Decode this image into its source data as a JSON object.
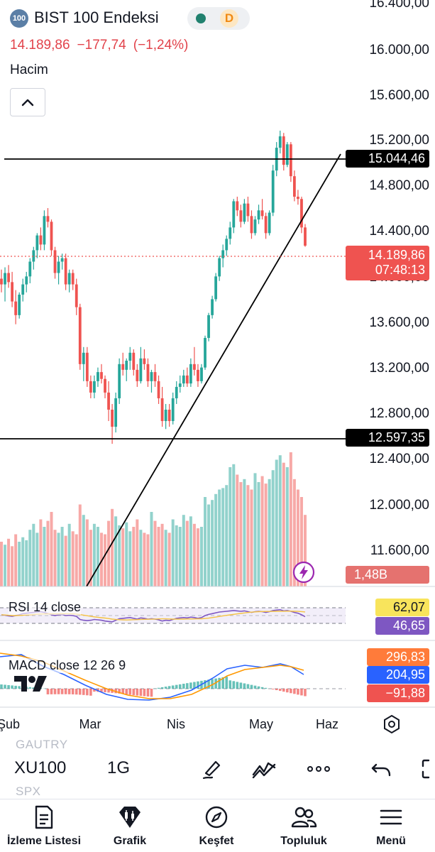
{
  "header": {
    "logo_text": "100",
    "symbol_name": "BIST 100 Endeksi",
    "delay_badge": "D",
    "last_price": "14.189,86",
    "change": "−177,74",
    "change_pct": "(−1,24%)",
    "volume_label": "Hacim"
  },
  "colors": {
    "up": "#26a69a",
    "down": "#ef5350",
    "text_down": "#e2434b",
    "rsi": "#7e57c2",
    "macd": "#2962ff",
    "signal": "#ff9800"
  },
  "price_axis": {
    "ticks": [
      "16.400,00",
      "16.000,00",
      "15.600,00",
      "15.200,00",
      "14.800,00",
      "14.400,00",
      "14.000,00",
      "13.600,00",
      "13.200,00",
      "12.800,00",
      "12.400,00",
      "12.000,00",
      "11.600,00"
    ],
    "resistance_tag": "15.044,46",
    "support_tag": "12.597,35",
    "current_price_tag": "14.189,86",
    "countdown": "07:48:13",
    "volume_tag": "1,48B"
  },
  "indicators": {
    "rsi": {
      "label": "RSI 14 close",
      "value_1": "62,07",
      "value_2": "46,65"
    },
    "macd": {
      "label": "MACD close 12 26 9",
      "value_1": "296,83",
      "value_2": "204,95",
      "value_3": "−91,88"
    }
  },
  "time_axis": [
    "Şub",
    "Mar",
    "Nis",
    "May",
    "Haz"
  ],
  "ghost_symbols": {
    "top": "GAUTRY",
    "bottom": "SPX"
  },
  "toolbar": {
    "symbol": "XU100",
    "interval": "1G"
  },
  "nav": {
    "watchlist": "İzleme Listesi",
    "chart": "Grafik",
    "explore": "Keşfet",
    "community": "Topluluk",
    "menu": "Menü"
  },
  "chart_data": {
    "type": "candlestick",
    "interval": "1D",
    "resistance": 15044.46,
    "support": 12597.35,
    "last": 14189.86,
    "candles": [
      [
        13900,
        13980,
        13780,
        13850
      ],
      [
        13850,
        14000,
        13700,
        13950
      ],
      [
        13950,
        14020,
        13820,
        13870
      ],
      [
        13870,
        13960,
        13650,
        13700
      ],
      [
        13700,
        13800,
        13500,
        13580
      ],
      [
        13580,
        13780,
        13550,
        13760
      ],
      [
        13760,
        13900,
        13700,
        13850
      ],
      [
        13850,
        13960,
        13780,
        13920
      ],
      [
        13920,
        14080,
        13860,
        14050
      ],
      [
        14050,
        14180,
        13980,
        14150
      ],
      [
        14150,
        14300,
        14080,
        14280
      ],
      [
        14280,
        14350,
        14150,
        14200
      ],
      [
        14200,
        14500,
        14150,
        14450
      ],
      [
        14450,
        14520,
        14350,
        14400
      ],
      [
        14400,
        14420,
        14100,
        14150
      ],
      [
        14150,
        14180,
        13900,
        13950
      ],
      [
        13950,
        14100,
        13850,
        14050
      ],
      [
        14050,
        14120,
        13980,
        14080
      ],
      [
        14080,
        14120,
        13800,
        13850
      ],
      [
        13850,
        13980,
        13780,
        13950
      ],
      [
        13950,
        13980,
        13800,
        13850
      ],
      [
        13850,
        13900,
        13580,
        13650
      ],
      [
        13650,
        13680,
        13100,
        13150
      ],
      [
        13150,
        13300,
        13000,
        13250
      ],
      [
        13250,
        13300,
        12950,
        13000
      ],
      [
        13000,
        13050,
        12850,
        12900
      ],
      [
        12900,
        13050,
        12850,
        13000
      ],
      [
        13000,
        13120,
        12950,
        13080
      ],
      [
        13080,
        13150,
        12980,
        13020
      ],
      [
        13020,
        13050,
        12850,
        12900
      ],
      [
        12900,
        13000,
        12650,
        12750
      ],
      [
        12750,
        12800,
        12450,
        12600
      ],
      [
        12600,
        12900,
        12550,
        12850
      ],
      [
        12850,
        13200,
        12800,
        13150
      ],
      [
        13150,
        13250,
        13050,
        13100
      ],
      [
        13100,
        13200,
        13000,
        13180
      ],
      [
        13180,
        13300,
        13100,
        13250
      ],
      [
        13250,
        13280,
        13050,
        13100
      ],
      [
        13100,
        13150,
        12950,
        13000
      ],
      [
        13000,
        13300,
        12980,
        13200
      ],
      [
        13200,
        13280,
        13100,
        13150
      ],
      [
        13150,
        13200,
        12950,
        13000
      ],
      [
        13000,
        13100,
        12900,
        13080
      ],
      [
        13080,
        13150,
        12950,
        13000
      ],
      [
        13000,
        13050,
        12800,
        12850
      ],
      [
        12850,
        12950,
        12600,
        12650
      ],
      [
        12650,
        12800,
        12580,
        12750
      ],
      [
        12750,
        12800,
        12600,
        12650
      ],
      [
        12650,
        12900,
        12620,
        12850
      ],
      [
        12850,
        13000,
        12800,
        12950
      ],
      [
        12950,
        13050,
        12900,
        12980
      ],
      [
        12980,
        13100,
        12950,
        13050
      ],
      [
        13050,
        13120,
        12950,
        12980
      ],
      [
        12980,
        13200,
        12950,
        13150
      ],
      [
        13150,
        13300,
        13050,
        13100
      ],
      [
        13100,
        13150,
        12950,
        13000
      ],
      [
        13000,
        13150,
        12980,
        13120
      ],
      [
        13120,
        13400,
        13100,
        13380
      ],
      [
        13380,
        13600,
        13350,
        13580
      ],
      [
        13580,
        13750,
        13550,
        13720
      ],
      [
        13720,
        13950,
        13700,
        13920
      ],
      [
        13920,
        14100,
        13880,
        14080
      ],
      [
        14080,
        14200,
        14000,
        14150
      ],
      [
        14150,
        14280,
        14100,
        14250
      ],
      [
        14250,
        14400,
        14200,
        14350
      ],
      [
        14350,
        14600,
        14300,
        14580
      ],
      [
        14580,
        14620,
        14450,
        14500
      ],
      [
        14500,
        14550,
        14350,
        14400
      ],
      [
        14400,
        14600,
        14380,
        14560
      ],
      [
        14560,
        14620,
        14400,
        14450
      ],
      [
        14450,
        14500,
        14250,
        14300
      ],
      [
        14300,
        14450,
        14280,
        14420
      ],
      [
        14420,
        14550,
        14380,
        14500
      ],
      [
        14500,
        14600,
        14420,
        14450
      ],
      [
        14450,
        14480,
        14250,
        14300
      ],
      [
        14300,
        14500,
        14280,
        14480
      ],
      [
        14480,
        14900,
        14450,
        14850
      ],
      [
        14850,
        15100,
        14800,
        15050
      ],
      [
        15050,
        15200,
        15000,
        15150
      ],
      [
        15150,
        15180,
        14850,
        14900
      ],
      [
        14900,
        15100,
        14880,
        15080
      ],
      [
        15080,
        15100,
        14750,
        14800
      ],
      [
        14800,
        14850,
        14580,
        14620
      ],
      [
        14620,
        14680,
        14550,
        14600
      ],
      [
        14600,
        14620,
        14300,
        14350
      ],
      [
        14350,
        14380,
        14180,
        14190
      ]
    ],
    "volume_pct": [
      30,
      28,
      32,
      27,
      35,
      30,
      33,
      31,
      38,
      42,
      36,
      45,
      40,
      44,
      50,
      38,
      36,
      40,
      34,
      42,
      37,
      35,
      55,
      48,
      45,
      38,
      42,
      40,
      36,
      35,
      44,
      52,
      47,
      41,
      39,
      43,
      37,
      40,
      45,
      38,
      36,
      35,
      50,
      44,
      40,
      42,
      38,
      36,
      45,
      41,
      40,
      48,
      44,
      47,
      42,
      39,
      40,
      60,
      55,
      58,
      62,
      65,
      66,
      68,
      80,
      82,
      75,
      70,
      72,
      68,
      65,
      76,
      70,
      74,
      69,
      72,
      78,
      85,
      88,
      83,
      80,
      90,
      72,
      65,
      60,
      48
    ],
    "rsi": [
      52,
      51,
      49,
      48,
      50,
      52,
      55,
      56,
      57,
      58,
      59,
      60,
      58,
      55,
      52,
      50,
      52,
      53,
      50,
      51,
      50,
      48,
      40,
      38,
      37,
      38,
      40,
      39,
      38,
      36,
      35,
      34,
      38,
      42,
      43,
      44,
      45,
      43,
      41,
      44,
      43,
      41,
      42,
      41,
      39,
      36,
      38,
      37,
      40,
      43,
      44,
      45,
      44,
      46,
      45,
      43,
      45,
      50,
      53,
      55,
      57,
      59,
      60,
      61,
      62,
      63,
      62,
      61,
      62,
      60,
      58,
      60,
      61,
      60,
      58,
      60,
      63,
      64,
      65,
      62,
      63,
      61,
      58,
      56,
      52,
      47
    ]
  }
}
